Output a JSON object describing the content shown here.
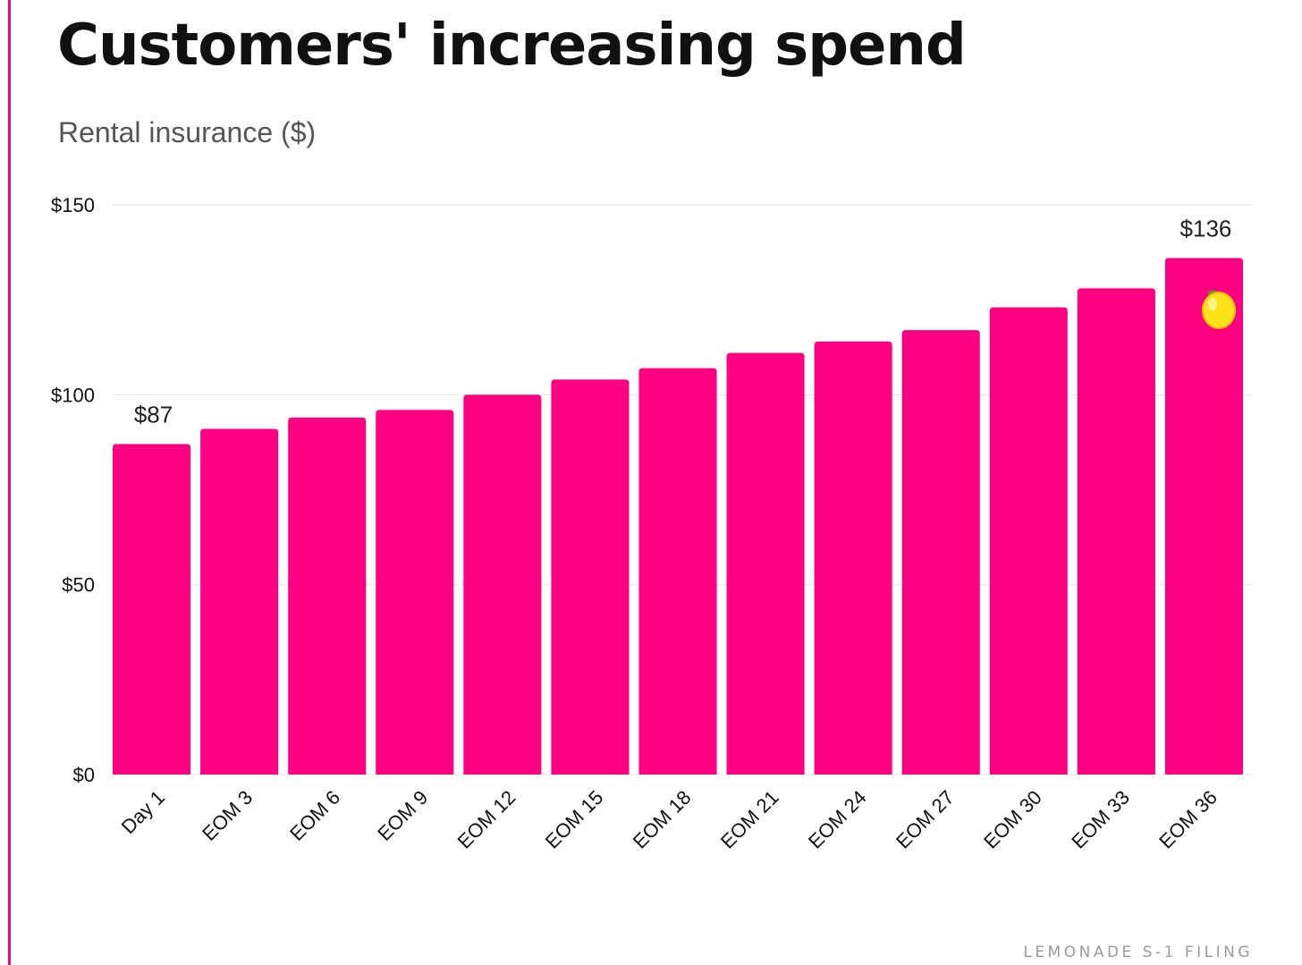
{
  "title": "Customers' increasing spend",
  "subtitle": "Rental insurance ($)",
  "source": "LEMONADE S-1 FILING",
  "colors": {
    "bar": "#ff0083",
    "accent": "#ff0083",
    "grid": "#e6e6e6",
    "text": "#111111"
  },
  "chart_data": {
    "type": "bar",
    "title": "Customers' increasing spend",
    "subtitle": "Rental insurance ($)",
    "xlabel": "",
    "ylabel": "",
    "categories": [
      "Day 1",
      "EOM 3",
      "EOM 6",
      "EOM 9",
      "EOM 12",
      "EOM 15",
      "EOM 18",
      "EOM 21",
      "EOM 24",
      "EOM 27",
      "EOM 30",
      "EOM 33",
      "EOM 36"
    ],
    "values": [
      87,
      91,
      94,
      96,
      100,
      104,
      107,
      111,
      114,
      117,
      123,
      128,
      136
    ],
    "ylim": [
      0,
      150
    ],
    "yticks": [
      0,
      50,
      100,
      150
    ],
    "ytick_labels": [
      "$0",
      "$50",
      "$100",
      "$150"
    ],
    "data_labels": [
      {
        "category": "Day 1",
        "text": "$87"
      },
      {
        "category": "EOM 36",
        "text": "$136"
      }
    ],
    "grid": true,
    "legend": "none",
    "annotation_icon": "lemon-icon"
  }
}
